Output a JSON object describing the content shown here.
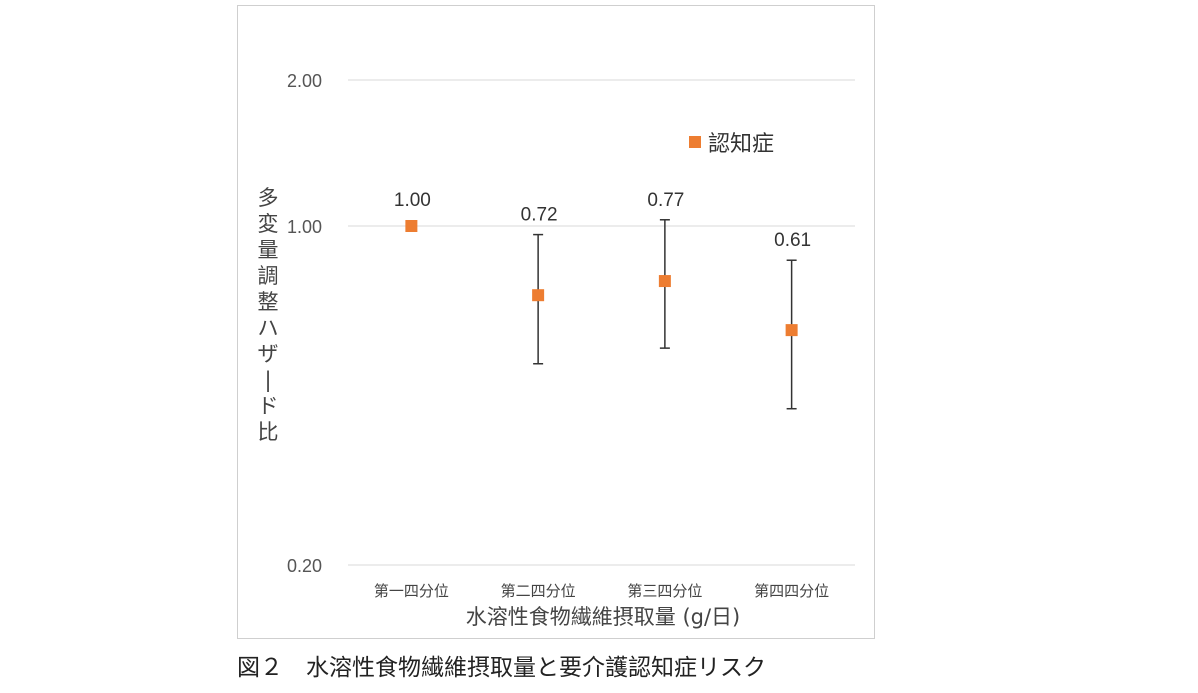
{
  "caption": "図２　水溶性食物繊維摂取量と要介護認知症リスク",
  "chart_data": {
    "type": "scatter",
    "yscale": "log",
    "ylim": [
      0.2,
      2.0
    ],
    "yticks": [
      "2.00",
      "1.00",
      "0.20"
    ],
    "ytick_values": [
      2.0,
      1.0,
      0.2
    ],
    "categories": [
      "第一四分位",
      "第二四分位",
      "第三四分位",
      "第四四分位"
    ],
    "xlabel": "水溶性食物繊維摂取量 (g/日)",
    "ylabel": "多変量調整ハザード比",
    "legend": "top-right",
    "grid": true,
    "series": [
      {
        "name": "認知症",
        "color": "#ED7D31",
        "values": [
          1.0,
          0.72,
          0.77,
          0.61
        ],
        "value_labels": [
          "1.00",
          "0.72",
          "0.77",
          "0.61"
        ],
        "ci_lower": [
          null,
          0.52,
          0.56,
          0.42
        ],
        "ci_upper": [
          null,
          0.96,
          1.03,
          0.85
        ]
      }
    ]
  }
}
